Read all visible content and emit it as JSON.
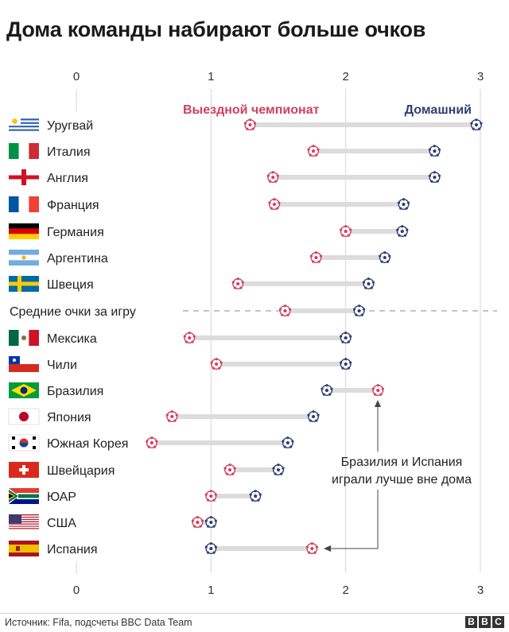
{
  "title": "Дома команды набирают больше очков",
  "source": "Источник: Fifa, подсчеты BBC Data Team",
  "logo": [
    "B",
    "B",
    "C"
  ],
  "colors": {
    "away": "#d2415d",
    "home": "#2f3f73",
    "connector": "#dcdcdc",
    "grid": "#d4d4d4"
  },
  "chart_data": {
    "type": "dumbbell",
    "title": "Дома команды набирают больше очков",
    "xlim": [
      0,
      3
    ],
    "xticks": [
      0,
      1,
      2,
      3
    ],
    "legend": {
      "away": "Выездной чемпионат",
      "home": "Домашний"
    },
    "series": [
      {
        "name": "Выездной чемпионат",
        "key": "away"
      },
      {
        "name": "Домашний",
        "key": "home"
      }
    ],
    "rows": [
      {
        "label": "Уругвай",
        "flag": "uruguay",
        "away": 1.29,
        "home": 2.97
      },
      {
        "label": "Италия",
        "flag": "italy",
        "away": 1.76,
        "home": 2.66
      },
      {
        "label": "Англия",
        "flag": "england",
        "away": 1.46,
        "home": 2.66
      },
      {
        "label": "Франция",
        "flag": "france",
        "away": 1.47,
        "home": 2.43
      },
      {
        "label": "Германия",
        "flag": "germany",
        "away": 2.0,
        "home": 2.42
      },
      {
        "label": "Аргентина",
        "flag": "argentina",
        "away": 1.78,
        "home": 2.29
      },
      {
        "label": "Швеция",
        "flag": "sweden",
        "away": 1.2,
        "home": 2.17
      },
      {
        "label": "Средние очки за игру",
        "flag": "",
        "away": 1.55,
        "home": 2.1,
        "average": true
      },
      {
        "label": "Мексика",
        "flag": "mexico",
        "away": 0.84,
        "home": 2.0
      },
      {
        "label": "Чили",
        "flag": "chile",
        "away": 1.04,
        "home": 2.0
      },
      {
        "label": "Бразилия",
        "flag": "brazil",
        "away": 2.24,
        "home": 1.86
      },
      {
        "label": "Япония",
        "flag": "japan",
        "away": 0.71,
        "home": 1.76
      },
      {
        "label": "Южная Корея",
        "flag": "south-korea",
        "away": 0.56,
        "home": 1.57
      },
      {
        "label": "Швейцария",
        "flag": "switzerland",
        "away": 1.14,
        "home": 1.5
      },
      {
        "label": "ЮАР",
        "flag": "south-africa",
        "away": 1.0,
        "home": 1.33
      },
      {
        "label": "США",
        "flag": "usa",
        "away": 0.9,
        "home": 1.0
      },
      {
        "label": "Испания",
        "flag": "spain",
        "away": 1.75,
        "home": 1.0
      }
    ],
    "annotation": {
      "lines": [
        "Бразилия и Испания",
        "играли лучше вне дома"
      ],
      "targets": [
        "Бразилия",
        "Испания"
      ]
    }
  }
}
